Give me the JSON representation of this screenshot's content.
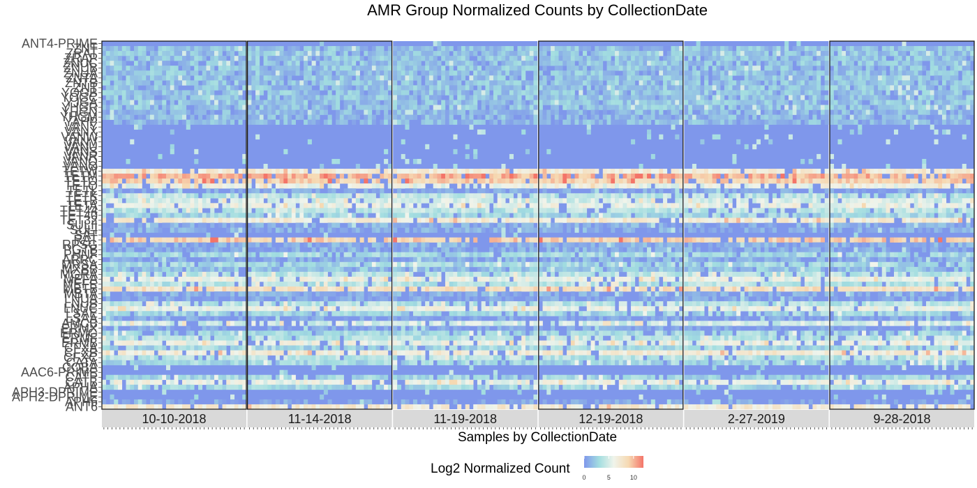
{
  "chart_data": {
    "type": "heatmap",
    "title": "AMR Group Normalized Counts by CollectionDate",
    "xlabel": "Samples by CollectionDate",
    "ylabel": "",
    "legend": {
      "title": "Log2 Normalized Count",
      "ticks": [
        "0",
        "5",
        "10"
      ],
      "tick_values": [
        0,
        5,
        10
      ],
      "range": [
        0,
        12
      ],
      "colors": [
        "#7f97eb",
        "#a2dde0",
        "#f0f4eb",
        "#f6d9b2",
        "#f47468"
      ],
      "position": "bottom"
    },
    "facets": [
      {
        "label": "10-10-2018",
        "n_samples": 36,
        "boxed": true
      },
      {
        "label": "11-14-2018",
        "n_samples": 36,
        "boxed": true
      },
      {
        "label": "11-19-2018",
        "n_samples": 36,
        "boxed": false
      },
      {
        "label": "12-19-2018",
        "n_samples": 36,
        "boxed": true
      },
      {
        "label": "2-27-2019",
        "n_samples": 36,
        "boxed": false
      },
      {
        "label": "9-28-2018",
        "n_samples": 36,
        "boxed": true
      }
    ],
    "row_labels": [
      "ANT4-PRIME",
      "ZNT",
      "ZRAT",
      "ZRAP",
      "ZNUC",
      "ZNUB",
      "ZNUA",
      "ZNTA",
      "ZNTB",
      "ZNT",
      "YOGB",
      "YOGC",
      "YJGA",
      "YHGR",
      "YHGN",
      "YHGM",
      "YAHP",
      "VANY",
      "VANX",
      "VANW",
      "VANV",
      "VANU",
      "VANS",
      "VANR",
      "VANQ",
      "VANO",
      "TETW",
      "TETM",
      "TETO",
      "TETQ",
      "TETL",
      "TETK",
      "TETB",
      "TETA",
      "TET44",
      "TET40",
      "TET32",
      "SULII",
      "SULI",
      "SAT",
      "RAT",
      "RPSG",
      "PGTB",
      "PHNF",
      "ARRC",
      "MRSA",
      "MXBB",
      "MGRA",
      "MEFA",
      "MEFE",
      "MBTB",
      "MBTA",
      "LNUA",
      "LNUB",
      "LNUC",
      "LSAE",
      "LSAA",
      "AMCB",
      "ERMX",
      "ERMG",
      "ERMF",
      "ERMB",
      "CFXA",
      "CFXB",
      "CFXC",
      "CATA",
      "COBA",
      "AAC6-PRIME",
      "CATP",
      "CATB",
      "APHA",
      "APH3-DPRIME",
      "APH2-DPRIME",
      "APH6",
      "ANT6"
    ],
    "visible_row_labels": [
      "ANT4-PRIME",
      "ZNT",
      "ZRAT",
      "ZRAP",
      "ZNUC",
      "ZNUB",
      "ZNUA",
      "ZNTA",
      "ZNTB",
      "ZNT",
      "YOGB",
      "YOGC",
      "YJGA",
      "YHGR",
      "YHGN",
      "YHGM",
      "YAHP",
      "VANY",
      "VANX",
      "VANW",
      "VANV",
      "VANU",
      "VANS",
      "VANR",
      "VANQ",
      "VANO",
      "TETW",
      "TETM",
      "TETO",
      "TETQ",
      "TETL",
      "TETK",
      "TETB",
      "TETA",
      "TET44",
      "TET40",
      "TET32",
      "SULII",
      "SULI",
      "SAT",
      "RAT",
      "RPSG",
      "PGTB",
      "PHNF",
      "ARRC",
      "MRSA",
      "MXBB",
      "MGRA",
      "MEFA",
      "MEFE",
      "MBTB",
      "MBTA",
      "LNUA",
      "LNUB",
      "LNUC",
      "LSAE",
      "LSAA",
      "AMCB",
      "ERMX",
      "ERMG",
      "ERMF",
      "ERMB",
      "CFXA",
      "CFXB",
      "CFXC",
      "CATA",
      "COBA",
      "AAC6-PRIME",
      "CATP",
      "CATB",
      "APHA",
      "APH3-DPRIME",
      "APH2-DPRIME",
      "APH6",
      "ANT6"
    ],
    "row_base_values": [
      0,
      2,
      2,
      2,
      2,
      2,
      2,
      2,
      2,
      2,
      2,
      2,
      2,
      2,
      1.5,
      1.5,
      1.5,
      0,
      0,
      0,
      0,
      0,
      0,
      0,
      0,
      0,
      7,
      10,
      9,
      6,
      0.5,
      4,
      5,
      6,
      4,
      3,
      7,
      1,
      1,
      0,
      9,
      1,
      1,
      3,
      1,
      3,
      2,
      4,
      6,
      4,
      8,
      1,
      0.5,
      4,
      6,
      3,
      0.5,
      5,
      0.5,
      3,
      4,
      6,
      3,
      7,
      4,
      3,
      0,
      0,
      3,
      6,
      3,
      0,
      0,
      0.5,
      7
    ]
  }
}
